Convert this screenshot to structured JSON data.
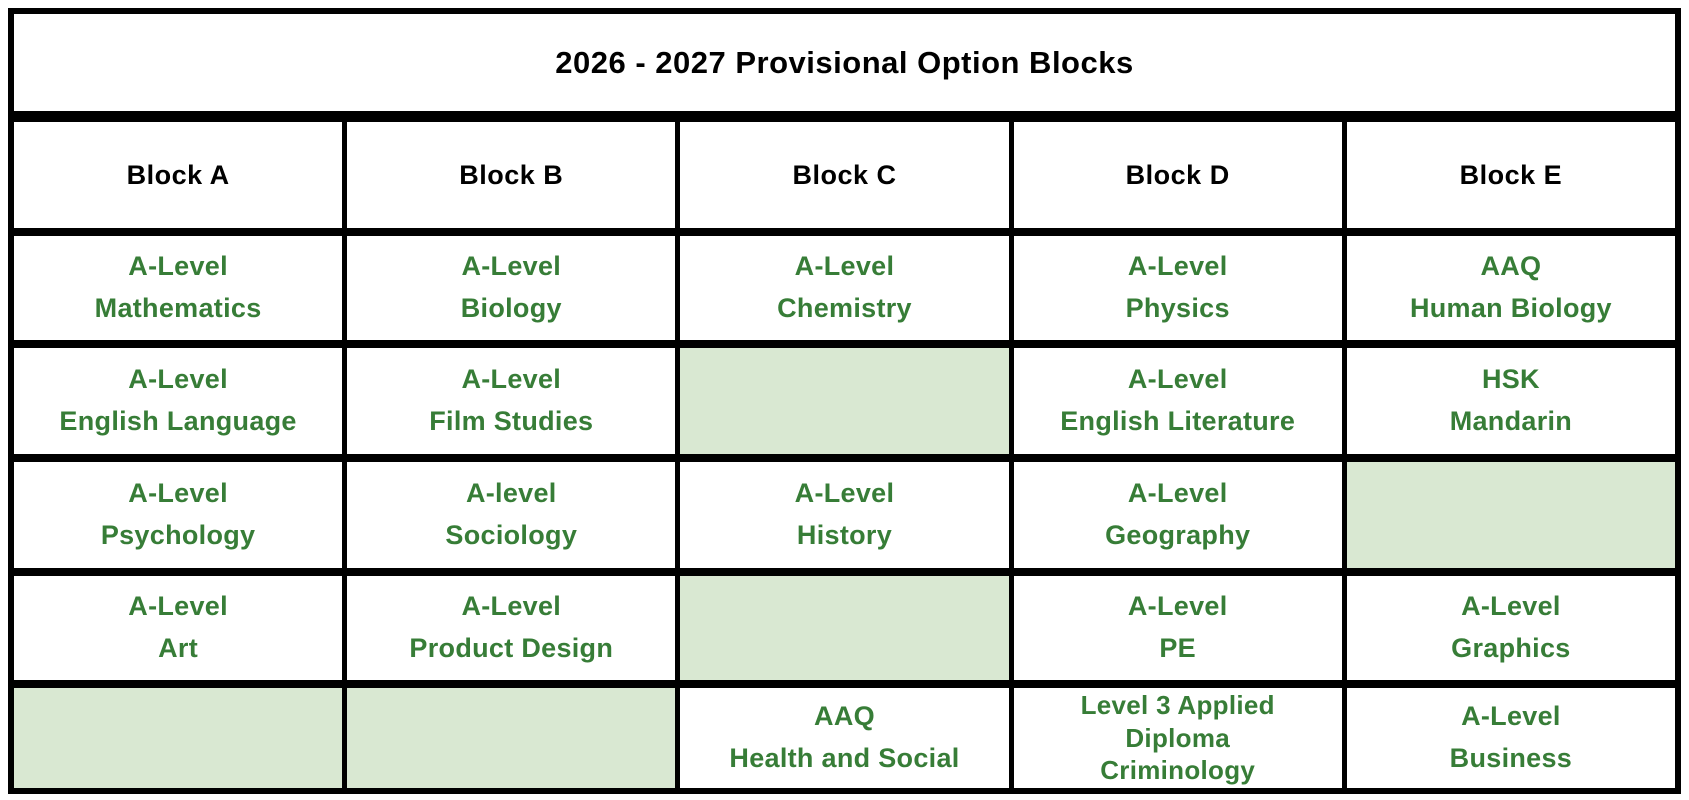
{
  "title": "2026 - 2027 Provisional Option Blocks",
  "colors": {
    "subject_text_green": "#377D37",
    "empty_cell_green": "#D9E8D2",
    "border_black": "#000000",
    "header_text_black": "#000000",
    "background_white": "#ffffff"
  },
  "table": {
    "headers": [
      "Block A",
      "Block B",
      "Block C",
      "Block D",
      "Block E"
    ],
    "rows": [
      {
        "cells": [
          "A-Level\nMathematics",
          "A-Level\nBiology",
          "A-Level\nChemistry",
          "A-Level\nPhysics",
          "AAQ\nHuman Biology"
        ]
      },
      {
        "cells": [
          "A-Level\nEnglish Language",
          "A-Level\nFilm Studies",
          "",
          "A-Level\nEnglish Literature",
          "HSK\nMandarin"
        ]
      },
      {
        "cells": [
          "A-Level\nPsychology",
          "A-level\nSociology",
          "A-Level\nHistory",
          "A-Level\nGeography",
          ""
        ]
      },
      {
        "cells": [
          "A-Level\nArt",
          "A-Level\nProduct Design",
          "",
          "A-Level\nPE",
          "A-Level\nGraphics"
        ]
      },
      {
        "cells": [
          "",
          "",
          "AAQ\nHealth and Social",
          "Level 3 Applied\nDiploma\nCriminology",
          "A-Level\nBusiness"
        ]
      }
    ]
  }
}
